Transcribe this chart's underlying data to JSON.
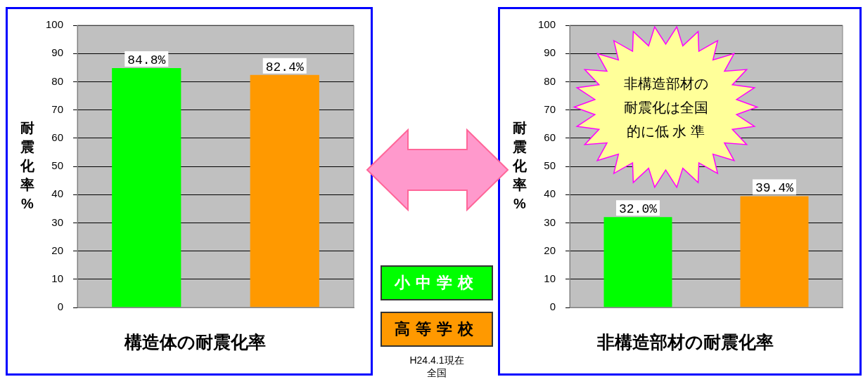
{
  "chart_data": [
    {
      "type": "bar",
      "title": "構造体の耐震化率",
      "ylabel": "耐震化率%",
      "categories": [
        null,
        null
      ],
      "ylim": [
        0,
        100
      ],
      "yticks": [
        0,
        10,
        20,
        30,
        40,
        50,
        60,
        70,
        80,
        90,
        100
      ],
      "grid": "y",
      "legend": "right",
      "series": [
        {
          "name": "小中学校",
          "color": "#00ff00",
          "values": [
            84.8,
            null
          ],
          "value_labels": [
            "84.8%",
            null
          ]
        },
        {
          "name": "高等学校",
          "color": "#ff9900",
          "values": [
            null,
            82.4
          ],
          "value_labels": [
            null,
            "82.4%"
          ]
        }
      ],
      "annotations": [
        "H24.4.1現在全国"
      ]
    },
    {
      "type": "bar",
      "title": "非構造部材の耐震化率",
      "ylabel": "耐震化率%",
      "categories": [
        null,
        null
      ],
      "ylim": [
        0,
        100
      ],
      "yticks": [
        0,
        10,
        20,
        30,
        40,
        50,
        60,
        70,
        80,
        90,
        100
      ],
      "grid": "y",
      "series": [
        {
          "color": "#00ff00",
          "values": [
            32.0,
            null
          ],
          "value_labels": [
            "32.0%",
            null
          ]
        },
        {
          "color": "#ff9900",
          "values": [
            null,
            39.4
          ],
          "value_labels": [
            null,
            "39.4%"
          ]
        }
      ],
      "annotations": [
        "非構造部材の耐震化は全国的に低 水 準"
      ]
    }
  ]
}
